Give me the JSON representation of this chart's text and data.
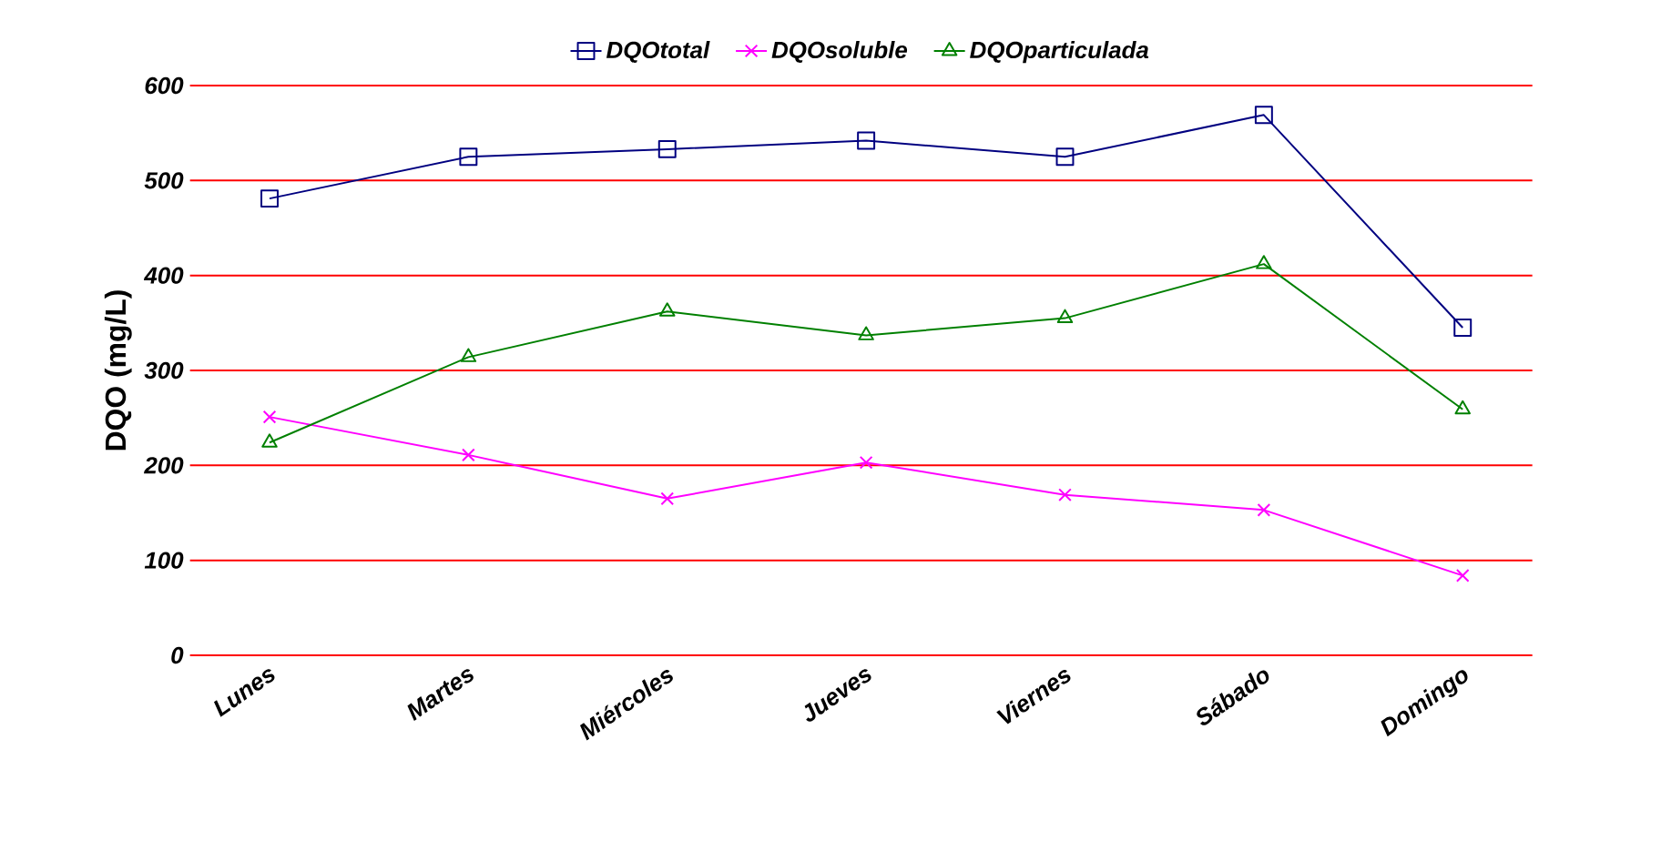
{
  "chart_data": {
    "type": "line",
    "ylabel": "DQO (mg/L)",
    "categories": [
      "Lunes",
      "Martes",
      "Miércoles",
      "Jueves",
      "Viernes",
      "Sábado",
      "Domingo"
    ],
    "series": [
      {
        "name": "DQOtotal",
        "color": "#000080",
        "marker": "square",
        "values": [
          481,
          525,
          533,
          542,
          525,
          569,
          345
        ]
      },
      {
        "name": "DQOsoluble",
        "color": "#ff00ff",
        "marker": "cross",
        "values": [
          251,
          211,
          165,
          203,
          169,
          153,
          84
        ]
      },
      {
        "name": "DQOparticulada",
        "color": "#008000",
        "marker": "triangle",
        "values": [
          224,
          314,
          362,
          337,
          355,
          412,
          259
        ]
      }
    ],
    "ylim": [
      0,
      600
    ],
    "yticks": [
      0,
      100,
      200,
      300,
      400,
      500,
      600
    ],
    "grid": "y",
    "legend": "top"
  }
}
